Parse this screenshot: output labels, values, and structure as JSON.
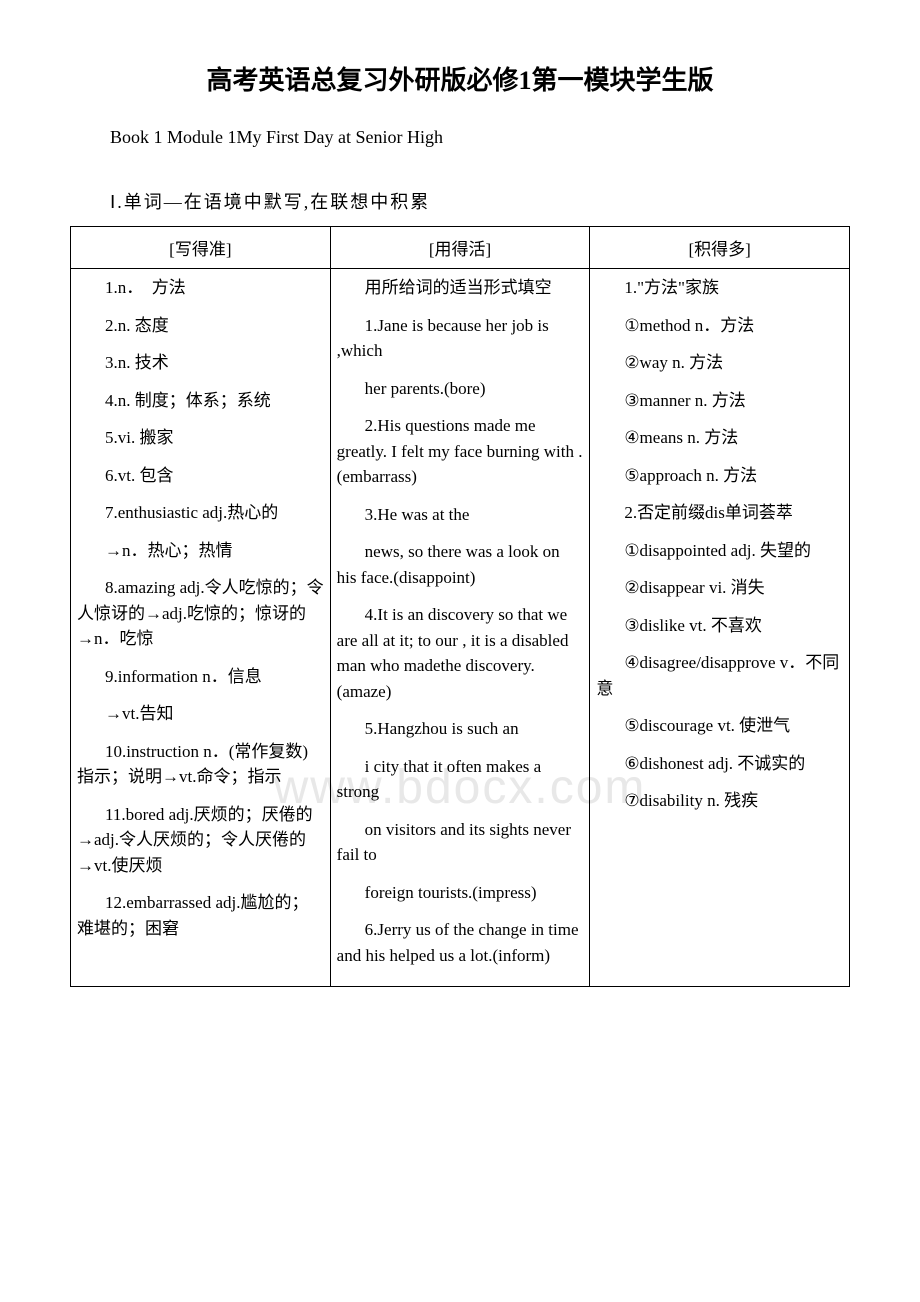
{
  "title": "高考英语总复习外研版必修1第一模块学生版",
  "subtitle": "Book 1 Module 1My First Day at Senior High",
  "section_header": "Ⅰ.单词—在语境中默写,在联想中积累",
  "watermark": "www.bdocx.com",
  "table": {
    "headers": [
      "[写得准]",
      "[用得活]",
      "[积得多]"
    ],
    "col1": [
      "1.n．　方法",
      "2.n. 态度",
      "3.n. 技术",
      "4.n. 制度；体系；系统",
      "5.vi. 搬家",
      "6.vt. 包含",
      "7.enthusiastic adj.热心的",
      "→n．热心；热情",
      "8.amazing adj.令人吃惊的；令人惊讶的→adj.吃惊的；惊讶的→n．吃惊",
      "9.information n．信息",
      "→vt.告知",
      "10.instruction n．(常作复数)指示；说明→vt.命令；指示",
      "11.bored adj.厌烦的；厌倦的→adj.令人厌烦的；令人厌倦的→vt.使厌烦",
      "12.embarrassed adj.尴尬的；难堪的；困窘"
    ],
    "col2": [
      "用所给词的适当形式填空",
      "1.Jane is because her job is ,which",
      " her parents.(bore)",
      "2.His questions made me greatly. I felt my face burning with .(embarrass)",
      "3.He was at the",
      " news, so there was a  look on his face.(disappoint)",
      "4.It is an  discovery so that we are all  at it; to our ,  it is a disabled man who madethe discovery.(amaze)",
      "5.Hangzhou is such an",
      " i city that it often makes a strong",
      " on visitors and its sights never fail to",
      " foreign tourists.(impress)",
      "6.Jerry  us of the change in time and his  helped us a lot.(inform)"
    ],
    "col3": [
      "1.\"方法\"家族",
      "①method n．方法",
      "②way n. 方法",
      "③manner n. 方法",
      "④means n. 方法",
      "⑤approach n. 方法",
      "2.否定前缀dis­单词荟萃",
      "①disappointed adj. 失望的",
      "②disappear vi. 消失",
      "③dislike vt. 不喜欢",
      "④disagree/disapprove v．不同意",
      "⑤discourage vt. 使泄气",
      "⑥dishonest adj. 不诚实的",
      "⑦disability n. 残疾"
    ]
  }
}
